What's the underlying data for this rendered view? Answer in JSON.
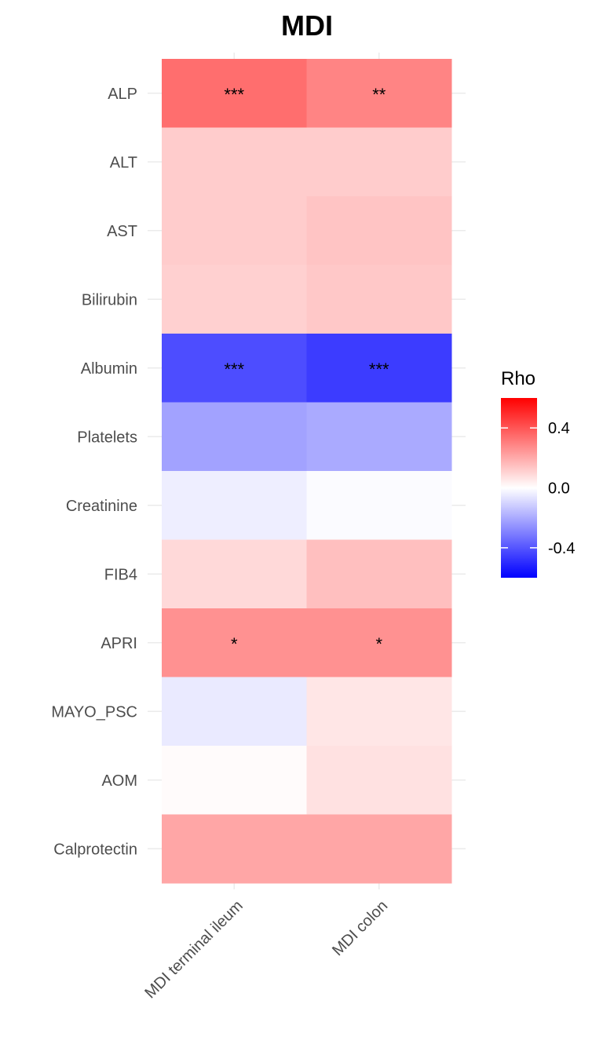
{
  "chart_data": {
    "type": "heatmap",
    "title": "MDI",
    "x_categories": [
      "MDI terminal ileum",
      "MDI colon"
    ],
    "y_categories": [
      "ALP",
      "ALT",
      "AST",
      "Bilirubin",
      "Albumin",
      "Platelets",
      "Creatinine",
      "FIB4",
      "APRI",
      "MAYO_PSC",
      "AOM",
      "Calprotectin"
    ],
    "values": [
      [
        0.34,
        0.29
      ],
      [
        0.12,
        0.12
      ],
      [
        0.12,
        0.14
      ],
      [
        0.11,
        0.13
      ],
      [
        -0.42,
        -0.46
      ],
      [
        -0.22,
        -0.2
      ],
      [
        -0.04,
        -0.01
      ],
      [
        0.09,
        0.15
      ],
      [
        0.26,
        0.26
      ],
      [
        -0.05,
        0.06
      ],
      [
        0.01,
        0.07
      ],
      [
        0.21,
        0.21
      ]
    ],
    "significance": [
      [
        "***",
        "**"
      ],
      [
        "",
        ""
      ],
      [
        "",
        ""
      ],
      [
        "",
        ""
      ],
      [
        "***",
        "***"
      ],
      [
        "",
        ""
      ],
      [
        "",
        ""
      ],
      [
        "",
        ""
      ],
      [
        "*",
        "*"
      ],
      [
        "",
        ""
      ],
      [
        "",
        ""
      ],
      [
        "",
        ""
      ]
    ],
    "legend": {
      "title": "Rho",
      "range": [
        -0.6,
        0.6
      ],
      "ticks": [
        0.4,
        0.0,
        -0.4
      ],
      "tick_labels": [
        "0.4",
        "0.0",
        "-0.4"
      ],
      "low_color": "#0000ff",
      "mid_color": "#ffffff",
      "high_color": "#ff0000",
      "placement": "right"
    },
    "grid": true
  }
}
